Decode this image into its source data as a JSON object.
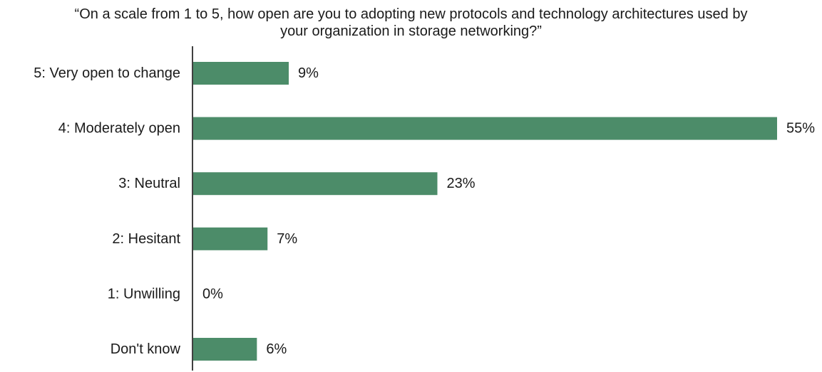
{
  "chart_data": {
    "type": "bar",
    "orientation": "horizontal",
    "title_lines": [
      "“On a scale from 1 to 5, how open are you to adopting new protocols and technology architectures used by",
      "your organization in storage networking?”"
    ],
    "categories": [
      "5: Very open to change",
      "4: Moderately open",
      "3: Neutral",
      "2: Hesitant",
      "1: Unwilling",
      "Don't know"
    ],
    "values": [
      9,
      55,
      23,
      7,
      0,
      6
    ],
    "value_labels": [
      "9%",
      "55%",
      "23%",
      "7%",
      "0%",
      "6%"
    ],
    "unit": "%",
    "bar_color": "#4c8c69",
    "axis_color": "#000000",
    "xlim": [
      0,
      55
    ],
    "grid": false,
    "legend": "none"
  }
}
